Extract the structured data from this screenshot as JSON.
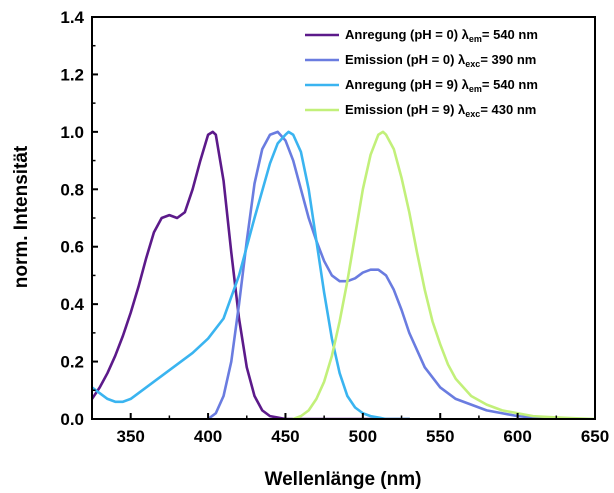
{
  "chart_data": {
    "type": "line",
    "xlabel": "Wellenlänge (nm)",
    "ylabel": "norm. Intensität",
    "xlim": [
      325,
      650
    ],
    "ylim": [
      0.0,
      1.4
    ],
    "xticks": [
      350,
      400,
      450,
      500,
      550,
      600,
      650
    ],
    "xtick_labels": [
      "350",
      "400",
      "450",
      "500",
      "550",
      "600",
      "650"
    ],
    "yticks": [
      0.0,
      0.2,
      0.4,
      0.6,
      0.8,
      1.0,
      1.2,
      1.4
    ],
    "ytick_labels": [
      "0.0",
      "0.2",
      "0.4",
      "0.6",
      "0.8",
      "1.0",
      "1.2",
      "1.4"
    ],
    "grid": false,
    "legend_position": "top-right",
    "series": [
      {
        "name": "Anregung (pH = 0) λem= 540 nm",
        "legend": {
          "main": "Anregung (pH = 0) λ",
          "sub": "em",
          "tail": "= 540 nm"
        },
        "color": "#5c1a8a",
        "x": [
          325,
          330,
          335,
          340,
          345,
          350,
          355,
          360,
          365,
          370,
          375,
          380,
          385,
          390,
          395,
          400,
          403,
          405,
          410,
          415,
          420,
          425,
          430,
          435,
          440,
          445,
          450,
          460,
          470,
          480,
          490,
          500,
          510,
          520,
          530
        ],
        "y": [
          0.07,
          0.11,
          0.16,
          0.22,
          0.29,
          0.37,
          0.46,
          0.56,
          0.65,
          0.7,
          0.71,
          0.7,
          0.72,
          0.8,
          0.9,
          0.99,
          1.0,
          0.99,
          0.83,
          0.58,
          0.35,
          0.18,
          0.08,
          0.03,
          0.01,
          0.005,
          0.0,
          0.0,
          0.0,
          0.0,
          0.0,
          0.0,
          0.0,
          0.0,
          0.0
        ]
      },
      {
        "name": "Emission (pH = 0) λexc= 390 nm",
        "legend": {
          "main": "Emission  (pH = 0) λ",
          "sub": "exc",
          "tail": "= 390 nm"
        },
        "color": "#6a7ce0",
        "x": [
          400,
          405,
          410,
          415,
          420,
          425,
          430,
          435,
          440,
          445,
          450,
          455,
          460,
          465,
          470,
          475,
          480,
          485,
          490,
          495,
          500,
          505,
          510,
          515,
          520,
          525,
          530,
          540,
          550,
          560,
          570,
          580,
          590,
          600,
          610,
          620
        ],
        "y": [
          0.0,
          0.02,
          0.08,
          0.2,
          0.4,
          0.62,
          0.82,
          0.94,
          0.99,
          1.0,
          0.97,
          0.9,
          0.8,
          0.7,
          0.62,
          0.55,
          0.5,
          0.48,
          0.48,
          0.49,
          0.51,
          0.52,
          0.52,
          0.5,
          0.45,
          0.38,
          0.3,
          0.18,
          0.11,
          0.07,
          0.05,
          0.03,
          0.02,
          0.01,
          0.005,
          0.0
        ]
      },
      {
        "name": "Anregung (pH = 9) λem= 540 nm",
        "legend": {
          "main": "Anregung (pH = 9) λ",
          "sub": "em",
          "tail": "= 540 nm"
        },
        "color": "#3ab4f0",
        "x": [
          325,
          330,
          335,
          340,
          345,
          350,
          355,
          360,
          370,
          380,
          390,
          400,
          410,
          420,
          430,
          440,
          445,
          450,
          452,
          455,
          460,
          465,
          470,
          475,
          480,
          485,
          490,
          495,
          500,
          505,
          510,
          515,
          520,
          525,
          530
        ],
        "y": [
          0.11,
          0.09,
          0.07,
          0.06,
          0.06,
          0.07,
          0.09,
          0.11,
          0.15,
          0.19,
          0.23,
          0.28,
          0.35,
          0.5,
          0.7,
          0.89,
          0.96,
          0.99,
          1.0,
          0.99,
          0.93,
          0.8,
          0.62,
          0.44,
          0.28,
          0.16,
          0.08,
          0.04,
          0.02,
          0.01,
          0.005,
          0.0,
          0.0,
          0.0,
          0.0
        ]
      },
      {
        "name": "Emission (pH = 9) λexc= 430 nm",
        "legend": {
          "main": "Emission  (pH = 9) λ",
          "sub": "exc",
          "tail": "= 430 nm"
        },
        "color": "#c2f07a",
        "x": [
          455,
          460,
          465,
          470,
          475,
          480,
          485,
          490,
          495,
          500,
          505,
          510,
          513,
          515,
          520,
          525,
          530,
          535,
          540,
          545,
          550,
          555,
          560,
          570,
          580,
          590,
          600,
          610,
          620,
          630,
          640,
          650
        ],
        "y": [
          0.0,
          0.01,
          0.03,
          0.07,
          0.13,
          0.22,
          0.34,
          0.48,
          0.64,
          0.8,
          0.92,
          0.99,
          1.0,
          0.99,
          0.94,
          0.84,
          0.72,
          0.58,
          0.45,
          0.34,
          0.26,
          0.19,
          0.14,
          0.08,
          0.05,
          0.03,
          0.02,
          0.01,
          0.007,
          0.004,
          0.002,
          0.0
        ]
      }
    ]
  }
}
